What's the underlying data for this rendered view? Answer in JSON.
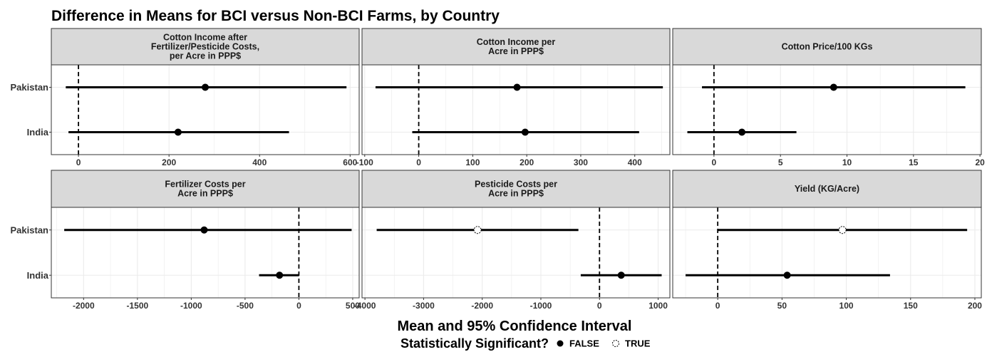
{
  "chart_data": {
    "type": "forest",
    "title": "Difference in Means for BCI versus Non-BCI Farms, by Country",
    "xlabel": "Mean and 95% Confidence Interval",
    "legend": {
      "title": "Statistically Significant?",
      "position": "bottom",
      "entries": [
        {
          "label": "FALSE",
          "marker": "filled"
        },
        {
          "label": "TRUE",
          "marker": "open"
        }
      ]
    },
    "categories": [
      "Pakistan",
      "India"
    ],
    "reference_line": 0,
    "grid": true,
    "panels": [
      {
        "title_lines": [
          "Cotton Income after",
          "Fertilizer/Pesticide Costs,",
          "per Acre in PPP$"
        ],
        "xlim": [
          -60,
          620
        ],
        "ticks": [
          0,
          200,
          400,
          600
        ],
        "tick_labels": [
          "0",
          "200",
          "400",
          "600"
        ],
        "points": [
          {
            "country": "Pakistan",
            "mean": 280,
            "lower": -28,
            "upper": 592,
            "significant": false
          },
          {
            "country": "India",
            "mean": 220,
            "lower": -22,
            "upper": 465,
            "significant": false
          }
        ]
      },
      {
        "title_lines": [
          "Cotton Income per",
          "Acre in PPP$"
        ],
        "xlim": [
          -105,
          465
        ],
        "ticks": [
          -100,
          0,
          100,
          200,
          300,
          400
        ],
        "tick_labels": [
          "-100",
          "0",
          "100",
          "200",
          "300",
          "400"
        ],
        "points": [
          {
            "country": "Pakistan",
            "mean": 182,
            "lower": -80,
            "upper": 452,
            "significant": false
          },
          {
            "country": "India",
            "mean": 197,
            "lower": -12,
            "upper": 408,
            "significant": false
          }
        ]
      },
      {
        "title_lines": [
          "Cotton Price/100 KGs"
        ],
        "xlim": [
          -3.1,
          20.1
        ],
        "ticks": [
          0,
          5,
          10,
          15,
          20
        ],
        "tick_labels": [
          "0",
          "5",
          "10",
          "15",
          "20"
        ],
        "points": [
          {
            "country": "Pakistan",
            "mean": 9,
            "lower": -0.9,
            "upper": 18.9,
            "significant": false
          },
          {
            "country": "India",
            "mean": 2.1,
            "lower": -2.0,
            "upper": 6.2,
            "significant": false
          }
        ]
      },
      {
        "title_lines": [
          "Fertilizer Costs per",
          "Acre in PPP$"
        ],
        "xlim": [
          -2300,
          560
        ],
        "ticks": [
          -2000,
          -1500,
          -1000,
          -500,
          0,
          500
        ],
        "tick_labels": [
          "-2000",
          "-1500",
          "-1000",
          "-500",
          "0",
          "500"
        ],
        "points": [
          {
            "country": "Pakistan",
            "mean": -880,
            "lower": -2180,
            "upper": 490,
            "significant": false
          },
          {
            "country": "India",
            "mean": -180,
            "lower": -370,
            "upper": 0,
            "significant": false
          }
        ]
      },
      {
        "title_lines": [
          "Pesticide Costs per",
          "Acre in PPP$"
        ],
        "xlim": [
          -4050,
          1200
        ],
        "ticks": [
          -4000,
          -3000,
          -2000,
          -1000,
          0,
          1000
        ],
        "tick_labels": [
          "-4000",
          "-3000",
          "-2000",
          "-1000",
          "0",
          "1000"
        ],
        "points": [
          {
            "country": "Pakistan",
            "mean": -2080,
            "lower": -3800,
            "upper": -360,
            "significant": true
          },
          {
            "country": "India",
            "mean": 370,
            "lower": -320,
            "upper": 1060,
            "significant": false
          }
        ]
      },
      {
        "title_lines": [
          "Yield (KG/Acre)"
        ],
        "xlim": [
          -35,
          205
        ],
        "ticks": [
          0,
          50,
          100,
          150,
          200
        ],
        "tick_labels": [
          "0",
          "50",
          "100",
          "150",
          "200"
        ],
        "points": [
          {
            "country": "Pakistan",
            "mean": 97,
            "lower": 0,
            "upper": 194,
            "significant": true
          },
          {
            "country": "India",
            "mean": 54,
            "lower": -25,
            "upper": 134,
            "significant": false
          }
        ]
      }
    ]
  }
}
